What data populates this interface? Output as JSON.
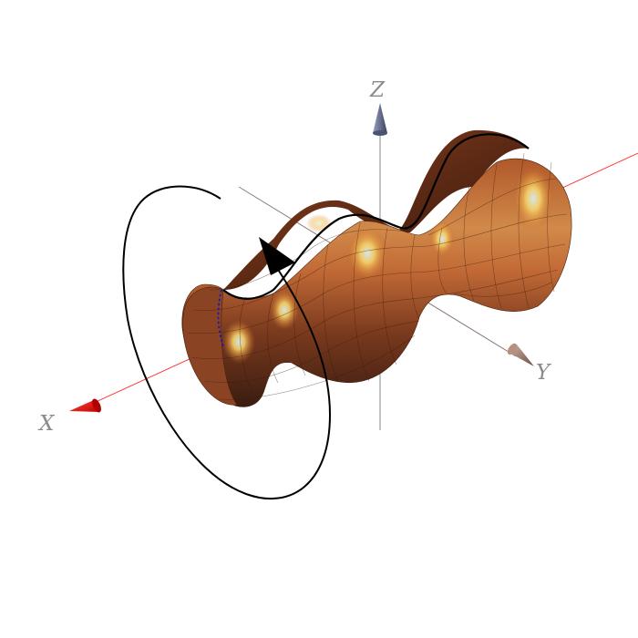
{
  "axes": {
    "x_label": "X",
    "y_label": "Y",
    "z_label": "Z"
  },
  "colors": {
    "x_axis": "#ff0000",
    "y_axis": "#7a6a6a",
    "z_axis": "#6d7083",
    "x_arrowhead": "#e8100c",
    "y_arrowhead": "#8c6a5a",
    "z_arrowhead": "#5d6480",
    "surface_dark": "#5a2a10",
    "surface_mid": "#b05a22",
    "surface_light": "#f3c55a",
    "highlight": "#b9d7e6",
    "rotation_curve": "#000000",
    "generating_curve": "#1a1ab0"
  },
  "icons": {
    "rotation_arrow": "arrow-head-icon",
    "x_cone": "cone-arrow-icon",
    "y_cone": "cone-arrow-icon",
    "z_cone": "cone-arrow-icon"
  }
}
